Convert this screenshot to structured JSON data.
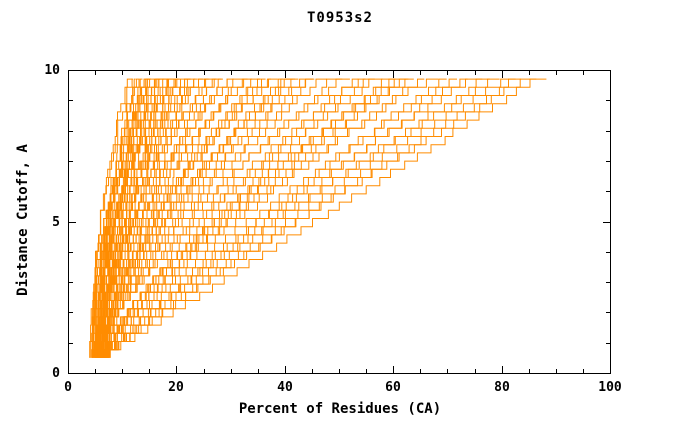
{
  "chart_data": {
    "type": "line",
    "title": "T0953s2",
    "xlabel": "Percent of Residues (CA)",
    "ylabel": "Distance Cutoff, A",
    "xlim": [
      0,
      100
    ],
    "ylim": [
      0,
      10
    ],
    "x_ticks": [
      0,
      20,
      40,
      60,
      80,
      100
    ],
    "x_minor_step": 5,
    "y_ticks": [
      0,
      5,
      10
    ],
    "y_minor_step": 1,
    "grid": false,
    "legend": "none",
    "line_color": "#ff8c00",
    "background_color": "#ffffff",
    "axis_color": "#000000",
    "y_range_of_curves": [
      0.5,
      9.7
    ],
    "encoding": "each curve approximated as x(y)=p_low+(p_high-p_low)*((y-0.5)/9.2)^gamma; entries are [p_low_percent, p_high_percent, gamma]",
    "curves": [
      [
        4.0,
        11.5,
        1.8
      ],
      [
        4.5,
        12.0,
        2.2
      ],
      [
        5.0,
        12.5,
        1.6
      ],
      [
        5.5,
        13.0,
        2.0
      ],
      [
        4.2,
        13.5,
        1.7
      ],
      [
        6.0,
        14.0,
        2.3
      ],
      [
        4.8,
        14.0,
        1.5
      ],
      [
        5.2,
        14.5,
        1.9
      ],
      [
        4.4,
        15.0,
        2.1
      ],
      [
        5.8,
        15.0,
        1.6
      ],
      [
        6.2,
        15.5,
        2.4
      ],
      [
        4.6,
        16.0,
        1.8
      ],
      [
        5.4,
        16.0,
        1.5
      ],
      [
        6.6,
        16.5,
        2.0
      ],
      [
        4.9,
        17.0,
        2.2
      ],
      [
        5.1,
        17.0,
        1.7
      ],
      [
        5.9,
        17.5,
        1.9
      ],
      [
        6.3,
        18.0,
        1.6
      ],
      [
        4.7,
        18.0,
        2.3
      ],
      [
        5.6,
        18.5,
        1.8
      ],
      [
        6.8,
        19.0,
        1.5
      ],
      [
        5.3,
        19.5,
        2.1
      ],
      [
        6.1,
        20.0,
        1.7
      ],
      [
        4.5,
        20.0,
        1.9
      ],
      [
        5.7,
        20.5,
        2.2
      ],
      [
        6.4,
        21.0,
        1.6
      ],
      [
        5.0,
        21.5,
        1.8
      ],
      [
        6.9,
        22.0,
        2.0
      ],
      [
        5.5,
        22.5,
        1.5
      ],
      [
        6.0,
        23.0,
        1.9
      ],
      [
        7.2,
        23.5,
        1.7
      ],
      [
        5.2,
        24.0,
        2.1
      ],
      [
        6.5,
        24.5,
        1.6
      ],
      [
        5.8,
        25.0,
        1.8
      ],
      [
        6.2,
        26.0,
        1.7
      ],
      [
        5.4,
        27.0,
        1.9
      ],
      [
        6.7,
        27.5,
        1.5
      ],
      [
        5.9,
        28.0,
        1.8
      ],
      [
        7.0,
        29.0,
        1.6
      ],
      [
        5.6,
        30.0,
        1.7
      ],
      [
        6.3,
        31.0,
        1.9
      ],
      [
        5.1,
        32.0,
        1.5
      ],
      [
        6.8,
        33.0,
        1.6
      ],
      [
        5.7,
        34.0,
        1.8
      ],
      [
        6.1,
        35.0,
        1.4
      ],
      [
        7.3,
        36.0,
        1.7
      ],
      [
        5.3,
        37.0,
        1.5
      ],
      [
        6.6,
        38.0,
        1.6
      ],
      [
        5.8,
        39.0,
        1.8
      ],
      [
        6.2,
        40.0,
        1.4
      ],
      [
        7.1,
        41.0,
        1.6
      ],
      [
        5.5,
        42.0,
        1.5
      ],
      [
        6.4,
        43.0,
        1.7
      ],
      [
        5.9,
        44.0,
        1.4
      ],
      [
        6.9,
        45.0,
        1.6
      ],
      [
        6.0,
        46.0,
        1.4
      ],
      [
        7.2,
        48.0,
        1.5
      ],
      [
        5.6,
        50.0,
        1.3
      ],
      [
        6.5,
        52.0,
        1.5
      ],
      [
        7.4,
        54.0,
        1.3
      ],
      [
        6.1,
        55.0,
        1.4
      ],
      [
        6.8,
        56.0,
        1.2
      ],
      [
        5.8,
        58.0,
        1.4
      ],
      [
        7.0,
        60.0,
        1.2
      ],
      [
        6.3,
        61.0,
        1.3
      ],
      [
        7.5,
        62.0,
        1.4
      ],
      [
        6.6,
        63.0,
        1.2
      ],
      [
        5.9,
        64.0,
        1.3
      ],
      [
        7.1,
        66.0,
        1.2
      ],
      [
        6.4,
        68.0,
        1.3
      ],
      [
        7.6,
        70.0,
        1.1
      ],
      [
        6.7,
        72.0,
        1.2
      ],
      [
        7.2,
        74.0,
        1.1
      ],
      [
        6.9,
        76.0,
        1.2
      ],
      [
        7.4,
        78.0,
        1.1
      ],
      [
        7.0,
        80.0,
        1.15
      ],
      [
        7.7,
        82.0,
        1.1
      ],
      [
        7.3,
        84.0,
        1.05
      ],
      [
        7.8,
        86.0,
        1.1
      ],
      [
        7.5,
        88.0,
        1.0
      ]
    ]
  }
}
